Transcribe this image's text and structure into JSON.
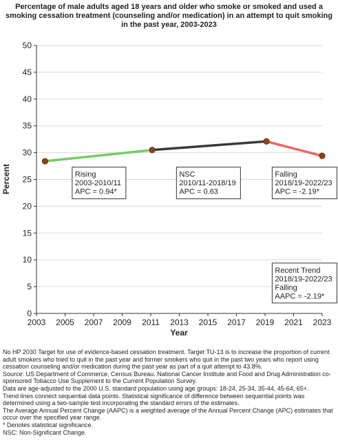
{
  "chart_data": {
    "type": "line",
    "title": "Percentage of  male adults  aged 18 years and older who smoke or smoked and used a smoking cessation treatment (counseling and/or medication) in an attempt to quit smoking in the past year, 2003-2023",
    "xlabel": "Year",
    "ylabel": "Percent",
    "xlim": [
      2003,
      2023
    ],
    "ylim": [
      0,
      50
    ],
    "xticks": [
      2003,
      2005,
      2007,
      2009,
      2011,
      2013,
      2015,
      2017,
      2019,
      2021,
      2023
    ],
    "yticks": [
      0,
      5,
      10,
      15,
      20,
      25,
      30,
      35,
      40,
      45,
      50
    ],
    "points": [
      {
        "x": 2003.6,
        "y": 28.4
      },
      {
        "x": 2011.1,
        "y": 30.5
      },
      {
        "x": 2019.1,
        "y": 32.1
      },
      {
        "x": 2023,
        "y": 29.4
      }
    ],
    "segments": [
      {
        "from": 0,
        "to": 1,
        "color": "#77cc66",
        "lines": [
          "Rising",
          "2003-2010/11",
          "APC =  0.94*"
        ],
        "box_x": 2005.5,
        "box_y": 27.3
      },
      {
        "from": 1,
        "to": 2,
        "color": "#3a3a3a",
        "lines": [
          "NSC",
          "2010/11-2018/19",
          "APC =  0.63"
        ],
        "box_x": 2012.8,
        "box_y": 27.3
      },
      {
        "from": 2,
        "to": 3,
        "color": "#ee6666",
        "lines": [
          "Falling",
          "2018/19-2022/23",
          "APC = -2.19*"
        ],
        "box_x": 2019.5,
        "box_y": 27.3
      }
    ],
    "recent_trend": {
      "lines": [
        "Recent Trend",
        "2018/19-2022/23",
        "Falling",
        "AAPC = -2.19*"
      ],
      "box_x": 2019.5,
      "box_y": 9.4
    },
    "marker_color": "#8b4513",
    "grid": "horizontal"
  },
  "notes": [
    "No HP 2030 Target for use of evidence-based cessation treatment. Target TU-13 is to increase the proportion of current adult smokers who tried to quit in the past year and former smokers who quit in the past two years who report using cessation counseling and/or medication during the past year as part of a quit attempt to 43.8%.",
    "Source: US Department of Commerce, Census Bureau. National Cancer Institute and Food and Drug Administration co-sponsored Tobacco Use Supplement to the Current Population Survey.",
    "Data are age-adjusted to the 2000 U.S. standard population using age groups: 18-24, 25-34, 35-44, 45-64, 65+.",
    "Trend lines connect sequential data points. Statistical significance of difference between sequential points was determined using a two-sample test incorporating the standard errors of the estimates.",
    "The Average Annual Percent Change (AAPC) is a weighted average of the Annual Percent Change (APC) estimates that occur over the specified year range.",
    "* Denotes statistical significance.",
    "NSC: Non-Significant Change."
  ]
}
